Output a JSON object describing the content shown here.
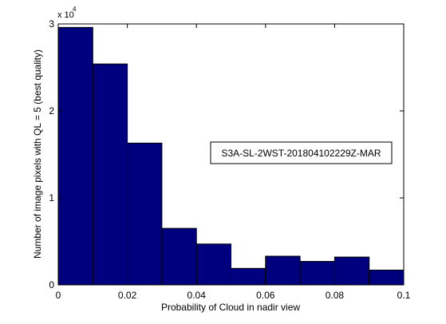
{
  "chart_data": {
    "type": "bar",
    "title": "",
    "xlabel": "Probability of Cloud in nadir view",
    "ylabel": "Number of image pixels with QL = 5 (best quality)",
    "xlim": [
      0,
      0.1
    ],
    "ylim": [
      0,
      30000
    ],
    "x_ticks": [
      "0",
      "0.02",
      "0.04",
      "0.06",
      "0.08",
      "0.1"
    ],
    "y_ticks": [
      "0",
      "1",
      "2",
      "3"
    ],
    "y_multiplier_base": "x 10",
    "y_multiplier_exponent": "4",
    "bin_edges": [
      0,
      0.01,
      0.02,
      0.03,
      0.04,
      0.05,
      0.06,
      0.07,
      0.08,
      0.09,
      0.1
    ],
    "values": [
      29600,
      25400,
      16300,
      6500,
      4700,
      1900,
      3300,
      2700,
      3200,
      1700
    ],
    "annotation": "S3A-SL-2WST-201804102229Z-MAR",
    "grid": false,
    "bar_color": "#00007f",
    "edge_color": "#000000"
  }
}
